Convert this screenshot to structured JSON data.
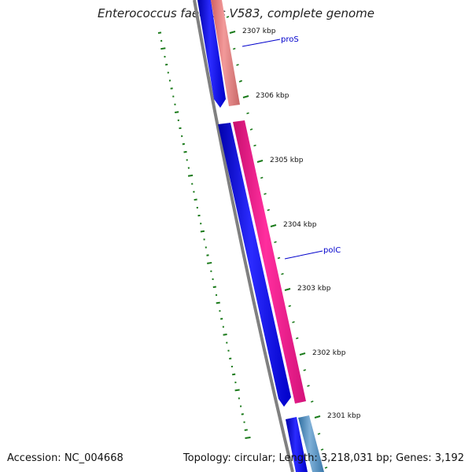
{
  "title": "Enterococcus faecalis V583, complete genome",
  "footer": {
    "accession": "Accession: NC_004668",
    "summary": "Topology: circular; Length: 3,218,031 bp; Genes: 3,192"
  },
  "ticks": [
    {
      "label": "2307 kbp"
    },
    {
      "label": "2306 kbp"
    },
    {
      "label": "2305 kbp"
    },
    {
      "label": "2304 kbp"
    },
    {
      "label": "2303 kbp"
    },
    {
      "label": "2302 kbp"
    },
    {
      "label": "2301 kbp"
    }
  ],
  "genes": [
    {
      "name": "proS",
      "color": "#0000cc"
    },
    {
      "name": "polC",
      "color": "#0000cc"
    }
  ],
  "colors": {
    "forward_strand": "#0000ff",
    "reverse_strand_pink": "#ff1493",
    "reverse_strand_salmon": "#f08080",
    "reverse_strand_steel": "#4682b4",
    "backbone": "#808080",
    "gc_ticks": "#1a7a1a",
    "tick_marks": "#1a7a1a"
  }
}
